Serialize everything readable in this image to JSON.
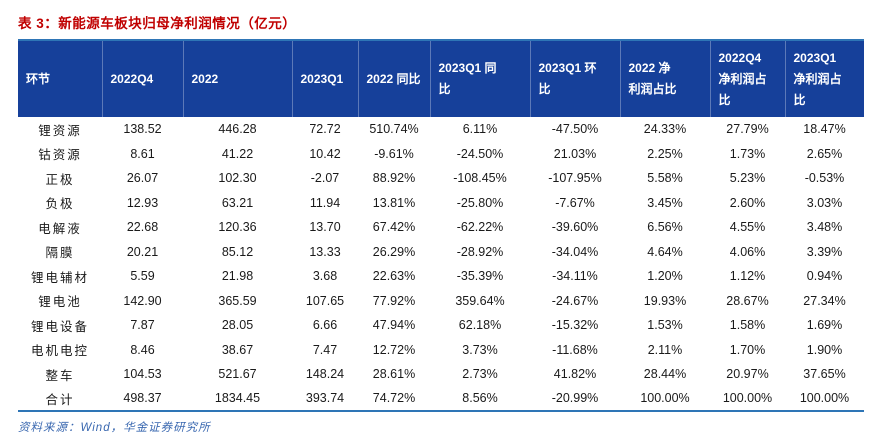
{
  "page": {
    "title": "表 3：新能源车板块归母净利润情况（亿元）",
    "source_note": "资料来源：Wind，华金证券研究所"
  },
  "colors": {
    "title_red": "#C00000",
    "header_bg": "#16409A",
    "border_blue": "#2E75B6",
    "source_blue": "#3A68B0"
  },
  "table": {
    "columns": [
      "环节",
      "2022Q4",
      "2022",
      "2023Q1",
      "2022 同比",
      "2023Q1 同\n比",
      "2023Q1 环\n比",
      "2022 净\n利润占比",
      "2022Q4\n净利润占\n比",
      "2023Q1\n净利润占\n比"
    ],
    "rows": [
      [
        "锂资源",
        "138.52",
        "446.28",
        "72.72",
        "510.74%",
        "6.11%",
        "-47.50%",
        "24.33%",
        "27.79%",
        "18.47%"
      ],
      [
        "钴资源",
        "8.61",
        "41.22",
        "10.42",
        "-9.61%",
        "-24.50%",
        "21.03%",
        "2.25%",
        "1.73%",
        "2.65%"
      ],
      [
        "正极",
        "26.07",
        "102.30",
        "-2.07",
        "88.92%",
        "-108.45%",
        "-107.95%",
        "5.58%",
        "5.23%",
        "-0.53%"
      ],
      [
        "负极",
        "12.93",
        "63.21",
        "11.94",
        "13.81%",
        "-25.80%",
        "-7.67%",
        "3.45%",
        "2.60%",
        "3.03%"
      ],
      [
        "电解液",
        "22.68",
        "120.36",
        "13.70",
        "67.42%",
        "-62.22%",
        "-39.60%",
        "6.56%",
        "4.55%",
        "3.48%"
      ],
      [
        "隔膜",
        "20.21",
        "85.12",
        "13.33",
        "26.29%",
        "-28.92%",
        "-34.04%",
        "4.64%",
        "4.06%",
        "3.39%"
      ],
      [
        "锂电辅材",
        "5.59",
        "21.98",
        "3.68",
        "22.63%",
        "-35.39%",
        "-34.11%",
        "1.20%",
        "1.12%",
        "0.94%"
      ],
      [
        "锂电池",
        "142.90",
        "365.59",
        "107.65",
        "77.92%",
        "359.64%",
        "-24.67%",
        "19.93%",
        "28.67%",
        "27.34%"
      ],
      [
        "锂电设备",
        "7.87",
        "28.05",
        "6.66",
        "47.94%",
        "62.18%",
        "-15.32%",
        "1.53%",
        "1.58%",
        "1.69%"
      ],
      [
        "电机电控",
        "8.46",
        "38.67",
        "7.47",
        "12.72%",
        "3.73%",
        "-11.68%",
        "2.11%",
        "1.70%",
        "1.90%"
      ],
      [
        "整车",
        "104.53",
        "521.67",
        "148.24",
        "28.61%",
        "2.73%",
        "41.82%",
        "28.44%",
        "20.97%",
        "37.65%"
      ],
      [
        "合计",
        "498.37",
        "1834.45",
        "393.74",
        "74.72%",
        "8.56%",
        "-20.99%",
        "100.00%",
        "100.00%",
        "100.00%"
      ]
    ]
  }
}
